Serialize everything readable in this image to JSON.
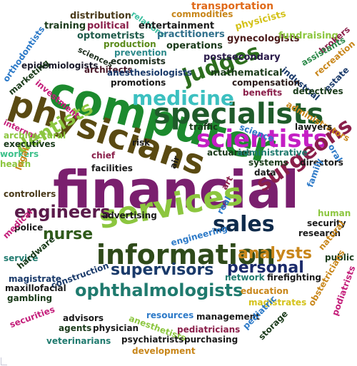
{
  "cloud": {
    "words": [
      {
        "text": "financial",
        "color": "#7a1f6e"
      },
      {
        "text": "computer",
        "color": "#1c8a2e"
      },
      {
        "text": "physicians",
        "color": "#5a4a12"
      },
      {
        "text": "services",
        "color": "#8cc63f"
      },
      {
        "text": "specialists",
        "color": "#1f5b2a"
      },
      {
        "text": "scientists",
        "color": "#c41ec4"
      },
      {
        "text": "information",
        "color": "#2f4a1a"
      },
      {
        "text": "sales",
        "color": "#0e2a4a"
      },
      {
        "text": "surgeons",
        "color": "#8a1f4a"
      },
      {
        "text": "judges",
        "color": "#2d6e1e"
      },
      {
        "text": "medicine",
        "color": "#3cc0c0"
      },
      {
        "text": "dentists",
        "color": "#8cc63f"
      },
      {
        "text": "engineers",
        "color": "#5a1a4a"
      },
      {
        "text": "ophthalmologists",
        "color": "#1f7a6e"
      },
      {
        "text": "supervisors",
        "color": "#1a3a6a"
      },
      {
        "text": "analysts",
        "color": "#c8861a"
      },
      {
        "text": "personal",
        "color": "#1a2a6a"
      },
      {
        "text": "nurse",
        "color": "#2f5a1a"
      },
      {
        "text": "transportation",
        "color": "#e06a1a"
      },
      {
        "text": "commodities",
        "color": "#c8861a"
      },
      {
        "text": "distribution",
        "color": "#4a3a1a"
      },
      {
        "text": "relations",
        "color": "#3cc0a0"
      },
      {
        "text": "training",
        "color": "#1a3a1a"
      },
      {
        "text": "political",
        "color": "#8a1f4a"
      },
      {
        "text": "entertainment",
        "color": "#1a1a1a"
      },
      {
        "text": "practitioners",
        "color": "#2d6e8a"
      },
      {
        "text": "physicists",
        "color": "#d4c21a"
      },
      {
        "text": "gynecologists",
        "color": "#4a1a1a"
      },
      {
        "text": "fundraising",
        "color": "#8cc63f"
      },
      {
        "text": "optometrists",
        "color": "#1f5b4a"
      },
      {
        "text": "production",
        "color": "#5a8a1a"
      },
      {
        "text": "operations",
        "color": "#1a3a1a"
      },
      {
        "text": "orthodontists",
        "color": "#2d7ac8"
      },
      {
        "text": "sciences",
        "color": "#1a2a1a"
      },
      {
        "text": "prevention",
        "color": "#2d8a8a"
      },
      {
        "text": "economists",
        "color": "#1a2a1a"
      },
      {
        "text": "postsecondary",
        "color": "#2a1a4a"
      },
      {
        "text": "brokers",
        "color": "#8a1f4a"
      },
      {
        "text": "assistants",
        "color": "#2d8a4a"
      },
      {
        "text": "epidemiologists",
        "color": "#1a1a2a"
      },
      {
        "text": "architects",
        "color": "#4a1a2a"
      },
      {
        "text": "anesthesiologists",
        "color": "#1a3a6a"
      },
      {
        "text": "mathematical",
        "color": "#1a3a1a"
      },
      {
        "text": "recreation",
        "color": "#c8861a"
      },
      {
        "text": "industrial",
        "color": "#1a3a6a"
      },
      {
        "text": "marketing",
        "color": "#1a3a1a"
      },
      {
        "text": "investment",
        "color": "#c41e7a"
      },
      {
        "text": "promotions",
        "color": "#1a1a1a"
      },
      {
        "text": "compensation",
        "color": "#2a1a1a"
      },
      {
        "text": "estate",
        "color": "#1a3a6a"
      },
      {
        "text": "benefits",
        "color": "#8a1f4a"
      },
      {
        "text": "detectives",
        "color": "#1a3a1a"
      },
      {
        "text": "administrators",
        "color": "#c8861a"
      },
      {
        "text": "internal",
        "color": "#c41e7a"
      },
      {
        "text": "brokers2",
        "color": "#8a1f4a"
      },
      {
        "text": "traffic",
        "color": "#1a3a1a"
      },
      {
        "text": "science",
        "color": "#2d7ac8"
      },
      {
        "text": "lawyers",
        "color": "#1a1a1a"
      },
      {
        "text": "architectural",
        "color": "#8cc63f"
      },
      {
        "text": "executives",
        "color": "#1a3a1a"
      },
      {
        "text": "risk",
        "color": "#1a1a1a"
      },
      {
        "text": "workers",
        "color": "#3cc08a"
      },
      {
        "text": "health",
        "color": "#8cc63f"
      },
      {
        "text": "chief",
        "color": "#8a1f4a"
      },
      {
        "text": "facilities",
        "color": "#1a1a1a"
      },
      {
        "text": "actuaries",
        "color": "#1a3a1a"
      },
      {
        "text": "administrative",
        "color": "#1f7a6e"
      },
      {
        "text": "oral",
        "color": "#2d7ac8"
      },
      {
        "text": "systems",
        "color": "#1a3a1a"
      },
      {
        "text": "data",
        "color": "#1a1a1a"
      },
      {
        "text": "directors",
        "color": "#1a1a1a"
      },
      {
        "text": "legal",
        "color": "#c8861a"
      },
      {
        "text": "air",
        "color": "#1a1a1a"
      },
      {
        "text": "family",
        "color": "#2d7ac8"
      },
      {
        "text": "controllers",
        "color": "#4a3a1a"
      },
      {
        "text": "art",
        "color": "#8a1f4a"
      },
      {
        "text": "advertising",
        "color": "#1a1a1a"
      },
      {
        "text": "real",
        "color": "#2d7ac8"
      },
      {
        "text": "human",
        "color": "#8cc63f"
      },
      {
        "text": "security",
        "color": "#1a1a1a"
      },
      {
        "text": "police",
        "color": "#1a1a1a"
      },
      {
        "text": "medical",
        "color": "#c41e7a"
      },
      {
        "text": "research",
        "color": "#1a1a1a"
      },
      {
        "text": "natural",
        "color": "#c8861a"
      },
      {
        "text": "engineering",
        "color": "#2d7ac8"
      },
      {
        "text": "service",
        "color": "#1f7a6e"
      },
      {
        "text": "hardware",
        "color": "#1a3a1a"
      },
      {
        "text": "public",
        "color": "#1a3a1a"
      },
      {
        "text": "magistrate",
        "color": "#1a3a6a"
      },
      {
        "text": "network",
        "color": "#1f7a6e"
      },
      {
        "text": "firefighting",
        "color": "#1a1a1a"
      },
      {
        "text": "construction",
        "color": "#1a3a6a"
      },
      {
        "text": "maxillofacial",
        "color": "#1a1a1a"
      },
      {
        "text": "education",
        "color": "#c8861a"
      },
      {
        "text": "gambling",
        "color": "#1a3a1a"
      },
      {
        "text": "magistrates",
        "color": "#d4c21a"
      },
      {
        "text": "obstetricians",
        "color": "#c8861a"
      },
      {
        "text": "podiatrists",
        "color": "#c41e7a"
      },
      {
        "text": "advisors",
        "color": "#1a1a1a"
      },
      {
        "text": "resources",
        "color": "#2d7ac8"
      },
      {
        "text": "management",
        "color": "#1a1a1a"
      },
      {
        "text": "securities",
        "color": "#c41e7a"
      },
      {
        "text": "agents",
        "color": "#1a3a1a"
      },
      {
        "text": "physician",
        "color": "#1a1a1a"
      },
      {
        "text": "anesthetists",
        "color": "#8cc63f"
      },
      {
        "text": "pediatricians",
        "color": "#8a1f4a"
      },
      {
        "text": "pediatric",
        "color": "#2d7ac8"
      },
      {
        "text": "storage",
        "color": "#1a3a1a"
      },
      {
        "text": "veterinarians",
        "color": "#1f7a6e"
      },
      {
        "text": "psychiatrists",
        "color": "#1a1a1a"
      },
      {
        "text": "purchasing",
        "color": "#1a1a1a"
      },
      {
        "text": "development",
        "color": "#c8861a"
      }
    ]
  }
}
